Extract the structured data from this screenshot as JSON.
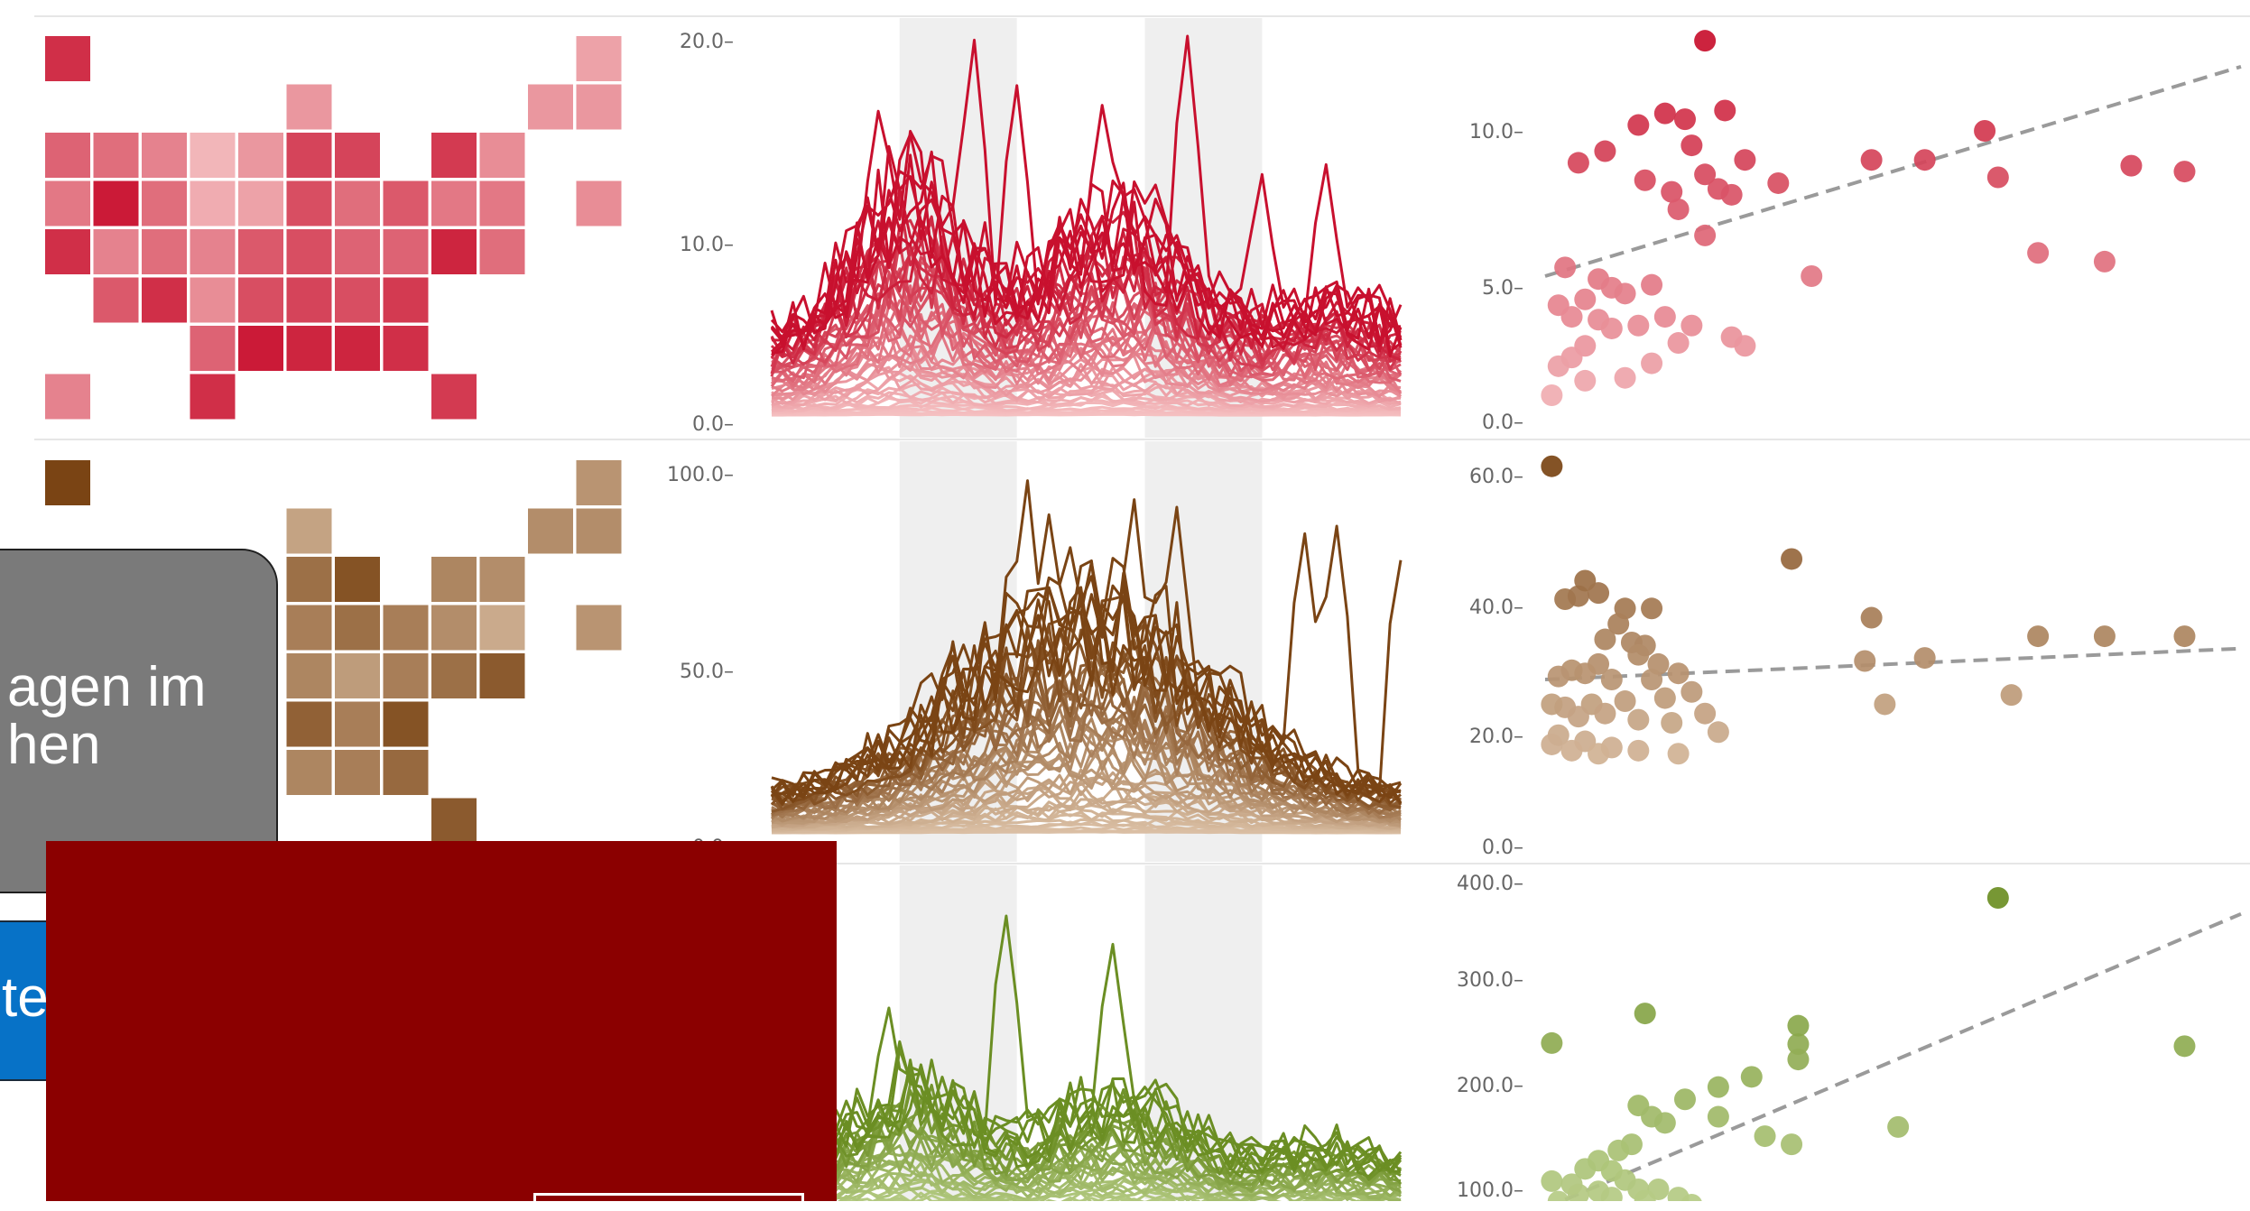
{
  "colors": {
    "row1": [
      "#fde0dc",
      "#c8102e"
    ],
    "row2": [
      "#ecd6bf",
      "#7a4414"
    ],
    "row3": [
      "#cfe0a6",
      "#6b8e23"
    ],
    "regression_line": "#9a9a9a",
    "band": "#efefef",
    "overlay_red": "#8b0000",
    "overlay_grey": "#7a7a7a",
    "overlay_blue": "#0772c7"
  },
  "overlays": {
    "grey_popup_text_line1": "agen im",
    "grey_popup_text_line2": "hen",
    "blue_button_text": "ten"
  },
  "chart_data": [
    {
      "type": "heatmap",
      "row": 1,
      "title": "",
      "cells": [
        {
          "c": 0,
          "r": 0,
          "v": 0.85
        },
        {
          "c": 11,
          "r": 0,
          "v": 0.3
        },
        {
          "c": 5,
          "r": 1,
          "v": 0.35
        },
        {
          "c": 10,
          "r": 1,
          "v": 0.35
        },
        {
          "c": 11,
          "r": 1,
          "v": 0.35
        },
        {
          "c": 0,
          "r": 2,
          "v": 0.6
        },
        {
          "c": 1,
          "r": 2,
          "v": 0.55
        },
        {
          "c": 2,
          "r": 2,
          "v": 0.45
        },
        {
          "c": 3,
          "r": 2,
          "v": 0.2
        },
        {
          "c": 4,
          "r": 2,
          "v": 0.35
        },
        {
          "c": 5,
          "r": 2,
          "v": 0.75
        },
        {
          "c": 6,
          "r": 2,
          "v": 0.75
        },
        {
          "c": 8,
          "r": 2,
          "v": 0.8
        },
        {
          "c": 9,
          "r": 2,
          "v": 0.4
        },
        {
          "c": 0,
          "r": 3,
          "v": 0.5
        },
        {
          "c": 1,
          "r": 3,
          "v": 0.95
        },
        {
          "c": 2,
          "r": 3,
          "v": 0.55
        },
        {
          "c": 3,
          "r": 3,
          "v": 0.25
        },
        {
          "c": 4,
          "r": 3,
          "v": 0.3
        },
        {
          "c": 5,
          "r": 3,
          "v": 0.7
        },
        {
          "c": 6,
          "r": 3,
          "v": 0.55
        },
        {
          "c": 7,
          "r": 3,
          "v": 0.65
        },
        {
          "c": 8,
          "r": 3,
          "v": 0.5
        },
        {
          "c": 9,
          "r": 3,
          "v": 0.5
        },
        {
          "c": 11,
          "r": 3,
          "v": 0.4
        },
        {
          "c": 0,
          "r": 4,
          "v": 0.85
        },
        {
          "c": 1,
          "r": 4,
          "v": 0.45
        },
        {
          "c": 2,
          "r": 4,
          "v": 0.55
        },
        {
          "c": 3,
          "r": 4,
          "v": 0.45
        },
        {
          "c": 4,
          "r": 4,
          "v": 0.65
        },
        {
          "c": 5,
          "r": 4,
          "v": 0.7
        },
        {
          "c": 6,
          "r": 4,
          "v": 0.6
        },
        {
          "c": 7,
          "r": 4,
          "v": 0.6
        },
        {
          "c": 8,
          "r": 4,
          "v": 0.9
        },
        {
          "c": 9,
          "r": 4,
          "v": 0.55
        },
        {
          "c": 1,
          "r": 5,
          "v": 0.65
        },
        {
          "c": 2,
          "r": 5,
          "v": 0.85
        },
        {
          "c": 3,
          "r": 5,
          "v": 0.4
        },
        {
          "c": 4,
          "r": 5,
          "v": 0.7
        },
        {
          "c": 5,
          "r": 5,
          "v": 0.75
        },
        {
          "c": 6,
          "r": 5,
          "v": 0.7
        },
        {
          "c": 7,
          "r": 5,
          "v": 0.8
        },
        {
          "c": 3,
          "r": 6,
          "v": 0.6
        },
        {
          "c": 4,
          "r": 6,
          "v": 0.95
        },
        {
          "c": 5,
          "r": 6,
          "v": 0.9
        },
        {
          "c": 6,
          "r": 6,
          "v": 0.9
        },
        {
          "c": 7,
          "r": 6,
          "v": 0.85
        },
        {
          "c": 0,
          "r": 7,
          "v": 0.45
        },
        {
          "c": 3,
          "r": 7,
          "v": 0.85
        },
        {
          "c": 8,
          "r": 7,
          "v": 0.8
        }
      ]
    },
    {
      "type": "line",
      "row": 1,
      "title": "",
      "yticks": [
        "20.0",
        "10.0",
        "0.0"
      ],
      "ylim": [
        0,
        20
      ],
      "points": 60,
      "series_count": 50,
      "shaded_bands": [
        [
          12,
          23
        ],
        [
          35,
          46
        ]
      ],
      "highlight_peaks": [
        [
          10,
          16.2
        ],
        [
          19,
          19.8
        ],
        [
          23,
          17.5
        ],
        [
          31,
          16.5
        ],
        [
          39,
          20.0
        ],
        [
          46,
          13.0
        ],
        [
          52,
          13.5
        ]
      ]
    },
    {
      "type": "scatter",
      "row": 1,
      "title": "",
      "yticks": [
        "10.0",
        "5.0",
        "0.0"
      ],
      "ylim": [
        0,
        15
      ],
      "xlim": [
        0,
        1
      ],
      "regression": {
        "start": [
          0.0,
          5.0
        ],
        "end": [
          1.0,
          11.9
        ]
      },
      "points": [
        [
          0.24,
          13.1
        ],
        [
          0.14,
          10.2
        ],
        [
          0.18,
          10.6
        ],
        [
          0.21,
          10.4
        ],
        [
          0.27,
          10.7
        ],
        [
          0.09,
          9.3
        ],
        [
          0.05,
          8.9
        ],
        [
          0.15,
          8.3
        ],
        [
          0.22,
          9.5
        ],
        [
          0.24,
          8.5
        ],
        [
          0.3,
          9.0
        ],
        [
          0.19,
          7.9
        ],
        [
          0.2,
          7.3
        ],
        [
          0.26,
          8.0
        ],
        [
          0.28,
          7.8
        ],
        [
          0.35,
          8.2
        ],
        [
          0.24,
          6.4
        ],
        [
          0.03,
          5.3
        ],
        [
          0.08,
          4.9
        ],
        [
          0.1,
          4.6
        ],
        [
          0.16,
          4.7
        ],
        [
          0.12,
          4.4
        ],
        [
          0.06,
          4.2
        ],
        [
          0.02,
          4.0
        ],
        [
          0.04,
          3.6
        ],
        [
          0.08,
          3.5
        ],
        [
          0.1,
          3.2
        ],
        [
          0.14,
          3.3
        ],
        [
          0.18,
          3.6
        ],
        [
          0.22,
          3.3
        ],
        [
          0.28,
          2.9
        ],
        [
          0.3,
          2.6
        ],
        [
          0.2,
          2.7
        ],
        [
          0.16,
          2.0
        ],
        [
          0.06,
          2.6
        ],
        [
          0.04,
          2.2
        ],
        [
          0.02,
          1.9
        ],
        [
          0.12,
          1.5
        ],
        [
          0.06,
          1.4
        ],
        [
          0.01,
          0.9
        ],
        [
          0.4,
          5.0
        ],
        [
          0.49,
          9.0
        ],
        [
          0.57,
          9.0
        ],
        [
          0.66,
          10.0
        ],
        [
          0.68,
          8.4
        ],
        [
          0.74,
          5.8
        ],
        [
          0.84,
          5.5
        ],
        [
          0.88,
          8.8
        ],
        [
          0.96,
          8.6
        ]
      ]
    },
    {
      "type": "heatmap",
      "row": 2,
      "title": "",
      "cells": [
        {
          "c": 0,
          "r": 0,
          "v": 1.0
        },
        {
          "c": 11,
          "r": 0,
          "v": 0.45
        },
        {
          "c": 5,
          "r": 1,
          "v": 0.35
        },
        {
          "c": 10,
          "r": 1,
          "v": 0.5
        },
        {
          "c": 11,
          "r": 1,
          "v": 0.5
        },
        {
          "c": 5,
          "r": 2,
          "v": 0.7
        },
        {
          "c": 6,
          "r": 2,
          "v": 0.9
        },
        {
          "c": 8,
          "r": 2,
          "v": 0.55
        },
        {
          "c": 9,
          "r": 2,
          "v": 0.5
        },
        {
          "c": 5,
          "r": 3,
          "v": 0.6
        },
        {
          "c": 6,
          "r": 3,
          "v": 0.7
        },
        {
          "c": 7,
          "r": 3,
          "v": 0.6
        },
        {
          "c": 8,
          "r": 3,
          "v": 0.5
        },
        {
          "c": 9,
          "r": 3,
          "v": 0.3
        },
        {
          "c": 11,
          "r": 3,
          "v": 0.45
        },
        {
          "c": 5,
          "r": 4,
          "v": 0.55
        },
        {
          "c": 6,
          "r": 4,
          "v": 0.4
        },
        {
          "c": 7,
          "r": 4,
          "v": 0.6
        },
        {
          "c": 8,
          "r": 4,
          "v": 0.7
        },
        {
          "c": 9,
          "r": 4,
          "v": 0.85
        },
        {
          "c": 5,
          "r": 5,
          "v": 0.8
        },
        {
          "c": 6,
          "r": 5,
          "v": 0.6
        },
        {
          "c": 7,
          "r": 5,
          "v": 0.9
        },
        {
          "c": 5,
          "r": 6,
          "v": 0.55
        },
        {
          "c": 6,
          "r": 6,
          "v": 0.6
        },
        {
          "c": 7,
          "r": 6,
          "v": 0.75
        },
        {
          "c": 8,
          "r": 7,
          "v": 0.85
        }
      ]
    },
    {
      "type": "line",
      "row": 2,
      "title": "",
      "yticks": [
        "100.0",
        "50.0",
        "0.0"
      ],
      "ylim": [
        0,
        100
      ],
      "points": 60,
      "series_count": 50,
      "shaded_bands": [
        [
          12,
          23
        ],
        [
          35,
          46
        ]
      ],
      "highlight_peaks": [
        [
          24,
          97
        ],
        [
          26,
          88
        ],
        [
          34,
          92
        ],
        [
          38,
          90
        ],
        [
          50,
          83
        ],
        [
          53,
          85
        ],
        [
          59,
          76
        ]
      ]
    },
    {
      "type": "scatter",
      "row": 2,
      "title": "",
      "yticks": [
        "60.0",
        "40.0",
        "20.0",
        "0.0"
      ],
      "ylim": [
        0,
        60
      ],
      "xlim": [
        0,
        1
      ],
      "regression": {
        "start": [
          0.0,
          27.0
        ],
        "end": [
          1.0,
          31.8
        ]
      },
      "points": [
        [
          0.01,
          61.5
        ],
        [
          0.03,
          40.0
        ],
        [
          0.05,
          40.5
        ],
        [
          0.06,
          43.0
        ],
        [
          0.08,
          41.0
        ],
        [
          0.12,
          38.5
        ],
        [
          0.16,
          38.5
        ],
        [
          0.11,
          36.0
        ],
        [
          0.13,
          33.0
        ],
        [
          0.15,
          32.5
        ],
        [
          0.09,
          33.5
        ],
        [
          0.14,
          31.0
        ],
        [
          0.17,
          29.5
        ],
        [
          0.2,
          28.0
        ],
        [
          0.08,
          29.5
        ],
        [
          0.06,
          28.0
        ],
        [
          0.04,
          28.5
        ],
        [
          0.02,
          27.5
        ],
        [
          0.1,
          27.0
        ],
        [
          0.16,
          27.0
        ],
        [
          0.22,
          25.0
        ],
        [
          0.18,
          24.0
        ],
        [
          0.12,
          23.5
        ],
        [
          0.07,
          23.0
        ],
        [
          0.03,
          22.5
        ],
        [
          0.01,
          23.0
        ],
        [
          0.05,
          21.0
        ],
        [
          0.09,
          21.5
        ],
        [
          0.14,
          20.5
        ],
        [
          0.19,
          20.0
        ],
        [
          0.24,
          21.5
        ],
        [
          0.26,
          18.5
        ],
        [
          0.02,
          18.0
        ],
        [
          0.06,
          17.0
        ],
        [
          0.1,
          16.0
        ],
        [
          0.04,
          15.5
        ],
        [
          0.08,
          15.0
        ],
        [
          0.14,
          15.5
        ],
        [
          0.2,
          15.0
        ],
        [
          0.01,
          16.5
        ],
        [
          0.37,
          46.5
        ],
        [
          0.49,
          37.0
        ],
        [
          0.48,
          30.0
        ],
        [
          0.57,
          30.5
        ],
        [
          0.74,
          34.0
        ],
        [
          0.84,
          34.0
        ],
        [
          0.96,
          34.0
        ],
        [
          0.51,
          23.0
        ],
        [
          0.7,
          24.5
        ]
      ]
    },
    {
      "type": "line",
      "row": 3,
      "title": "",
      "yticks": [],
      "ylim": [
        0,
        100
      ],
      "points": 60,
      "series_count": 40,
      "shaded_bands": [
        [
          12,
          23
        ],
        [
          35,
          46
        ]
      ],
      "highlight_peaks": [
        [
          11,
          62
        ],
        [
          22,
          88
        ],
        [
          32,
          80
        ]
      ]
    },
    {
      "type": "scatter",
      "row": 3,
      "title": "",
      "yticks": [
        "400.0",
        "300.0",
        "200.0",
        "100.0"
      ],
      "ylim": [
        75,
        400
      ],
      "xlim": [
        0,
        1
      ],
      "regression": {
        "start": [
          0.03,
          90
        ],
        "end": [
          1.0,
          357
        ]
      },
      "points": [
        [
          0.68,
          385
        ],
        [
          0.15,
          272
        ],
        [
          0.01,
          243
        ],
        [
          0.38,
          242
        ],
        [
          0.96,
          240
        ],
        [
          0.38,
          260
        ],
        [
          0.38,
          227
        ],
        [
          0.31,
          210
        ],
        [
          0.26,
          200
        ],
        [
          0.21,
          188
        ],
        [
          0.14,
          182
        ],
        [
          0.16,
          171
        ],
        [
          0.18,
          165
        ],
        [
          0.26,
          171
        ],
        [
          0.33,
          152
        ],
        [
          0.37,
          144
        ],
        [
          0.53,
          161
        ],
        [
          0.13,
          144
        ],
        [
          0.11,
          138
        ],
        [
          0.08,
          128
        ],
        [
          0.06,
          120
        ],
        [
          0.01,
          108
        ],
        [
          0.04,
          105
        ],
        [
          0.1,
          118
        ],
        [
          0.12,
          109
        ],
        [
          0.14,
          100
        ],
        [
          0.17,
          100
        ],
        [
          0.08,
          98
        ],
        [
          0.05,
          95
        ],
        [
          0.02,
          88
        ],
        [
          0.1,
          92
        ],
        [
          0.15,
          89
        ],
        [
          0.2,
          92
        ],
        [
          0.22,
          85
        ]
      ]
    }
  ]
}
